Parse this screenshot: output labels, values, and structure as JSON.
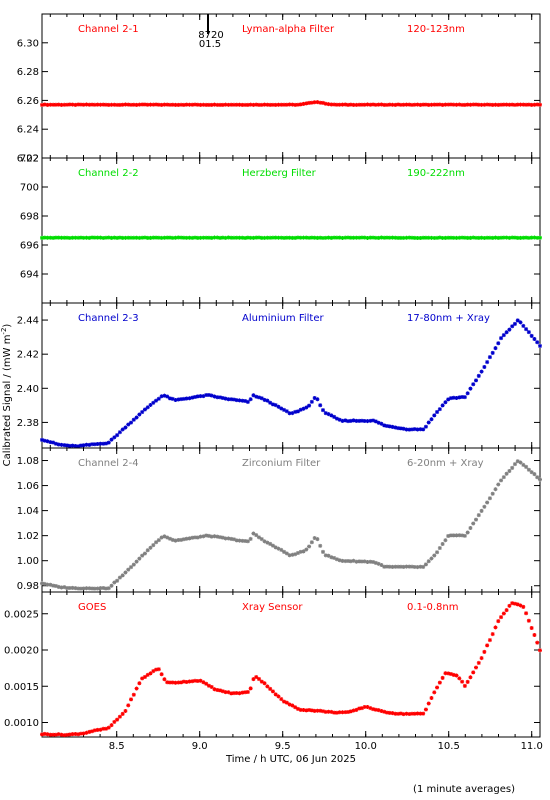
{
  "figure": {
    "ylabel": "Calibrated Signal / (mW m",
    "ylabel_sup": "-2",
    "ylabel_tail": ")",
    "xlabel": "Time / h UTC, 06 Jun 2025",
    "note": "(1 minute averages)",
    "marker": {
      "line1": "8720",
      "line2": "01.5"
    }
  },
  "chart_data": [
    {
      "type": "scatter",
      "label_left": "Channel 2-1",
      "label_mid": "Lyman-alpha Filter",
      "label_right": "120-123nm",
      "color": "#ff0000",
      "ylim": [
        6.22,
        6.32
      ],
      "yticks": [
        6.22,
        6.24,
        6.26,
        6.28,
        6.3
      ],
      "ytick_labels": [
        "6.22",
        "6.24",
        "6.26",
        "6.28",
        "6.30"
      ],
      "xlim": [
        8.05,
        11.05
      ],
      "x": [
        8.05,
        9.6,
        9.7,
        9.8,
        11.05
      ],
      "y": [
        6.257,
        6.257,
        6.259,
        6.257,
        6.257
      ]
    },
    {
      "type": "scatter",
      "label_left": "Channel 2-2",
      "label_mid": "Herzberg Filter",
      "label_right": "190-222nm",
      "color": "#00dd00",
      "ylim": [
        692,
        702
      ],
      "yticks": [
        694,
        696,
        698,
        700,
        702
      ],
      "ytick_labels": [
        "694",
        "696",
        "698",
        "700",
        "702"
      ],
      "xlim": [
        8.05,
        11.05
      ],
      "x": [
        8.05,
        11.05
      ],
      "y": [
        696.5,
        696.5
      ]
    },
    {
      "type": "scatter",
      "label_left": "Channel 2-3",
      "label_mid": "Aluminium Filter",
      "label_right": "17-80nm + Xray",
      "color": "#0000cc",
      "ylim": [
        2.365,
        2.45
      ],
      "yticks": [
        2.38,
        2.4,
        2.42,
        2.44
      ],
      "ytick_labels": [
        "2.38",
        "2.40",
        "2.42",
        "2.44"
      ],
      "xlim": [
        8.05,
        11.05
      ],
      "x": [
        8.05,
        8.15,
        8.25,
        8.45,
        8.55,
        8.7,
        8.78,
        8.85,
        9.05,
        9.15,
        9.3,
        9.32,
        9.4,
        9.55,
        9.65,
        9.7,
        9.75,
        9.85,
        10.05,
        10.12,
        10.25,
        10.35,
        10.42,
        10.5,
        10.6,
        10.7,
        10.82,
        10.92,
        11.05
      ],
      "y": [
        2.37,
        2.367,
        2.366,
        2.368,
        2.377,
        2.39,
        2.396,
        2.393,
        2.396,
        2.394,
        2.392,
        2.396,
        2.393,
        2.385,
        2.389,
        2.395,
        2.386,
        2.381,
        2.381,
        2.378,
        2.376,
        2.376,
        2.385,
        2.394,
        2.395,
        2.41,
        2.43,
        2.44,
        2.425
      ]
    },
    {
      "type": "scatter",
      "label_left": "Channel 2-4",
      "label_mid": "Zirconium Filter",
      "label_right": "6-20nm + Xray",
      "color": "#808080",
      "ylim": [
        0.975,
        1.09
      ],
      "yticks": [
        0.98,
        1.0,
        1.02,
        1.04,
        1.06,
        1.08
      ],
      "ytick_labels": [
        "0.98",
        "1.00",
        "1.02",
        "1.04",
        "1.06",
        "1.08"
      ],
      "xlim": [
        8.05,
        11.05
      ],
      "x": [
        8.05,
        8.15,
        8.25,
        8.45,
        8.55,
        8.7,
        8.78,
        8.85,
        9.05,
        9.15,
        9.3,
        9.32,
        9.4,
        9.55,
        9.65,
        9.7,
        9.75,
        9.85,
        10.05,
        10.12,
        10.25,
        10.35,
        10.42,
        10.5,
        10.6,
        10.7,
        10.82,
        10.92,
        11.05
      ],
      "y": [
        0.982,
        0.979,
        0.978,
        0.978,
        0.99,
        1.01,
        1.02,
        1.016,
        1.02,
        1.018,
        1.015,
        1.022,
        1.015,
        1.004,
        1.009,
        1.02,
        1.005,
        1.0,
        0.999,
        0.995,
        0.995,
        0.995,
        1.005,
        1.02,
        1.02,
        1.04,
        1.065,
        1.08,
        1.065
      ]
    },
    {
      "type": "scatter",
      "label_left": "GOES",
      "label_mid": "Xray Sensor",
      "label_right": "0.1-0.8nm",
      "color": "#ff0000",
      "ylim": [
        0.0008,
        0.0028
      ],
      "yticks": [
        0.001,
        0.0015,
        0.002,
        0.0025
      ],
      "ytick_labels": [
        "0.0010",
        "0.0015",
        "0.0020",
        "0.0025"
      ],
      "xlim": [
        8.05,
        11.05
      ],
      "xticks": [
        8.5,
        9.0,
        9.5,
        10.0,
        10.5,
        11.0
      ],
      "xtick_labels": [
        "8.5",
        "9.0",
        "9.5",
        "10.0",
        "10.5",
        "11.0"
      ],
      "x": [
        8.05,
        8.2,
        8.3,
        8.35,
        8.45,
        8.55,
        8.65,
        8.75,
        8.8,
        8.85,
        9.0,
        9.1,
        9.2,
        9.3,
        9.33,
        9.4,
        9.5,
        9.6,
        9.72,
        9.8,
        9.9,
        10.0,
        10.1,
        10.2,
        10.35,
        10.42,
        10.48,
        10.55,
        10.6,
        10.7,
        10.8,
        10.88,
        10.95,
        11.05
      ],
      "y": [
        0.00084,
        0.00083,
        0.00085,
        0.00088,
        0.00092,
        0.00115,
        0.0016,
        0.00175,
        0.00155,
        0.00155,
        0.00158,
        0.00145,
        0.0014,
        0.00142,
        0.00165,
        0.00152,
        0.0013,
        0.00118,
        0.00116,
        0.00114,
        0.00114,
        0.00122,
        0.00115,
        0.00112,
        0.00112,
        0.00145,
        0.00168,
        0.00165,
        0.0015,
        0.0019,
        0.0024,
        0.00265,
        0.0026,
        0.002
      ]
    }
  ]
}
